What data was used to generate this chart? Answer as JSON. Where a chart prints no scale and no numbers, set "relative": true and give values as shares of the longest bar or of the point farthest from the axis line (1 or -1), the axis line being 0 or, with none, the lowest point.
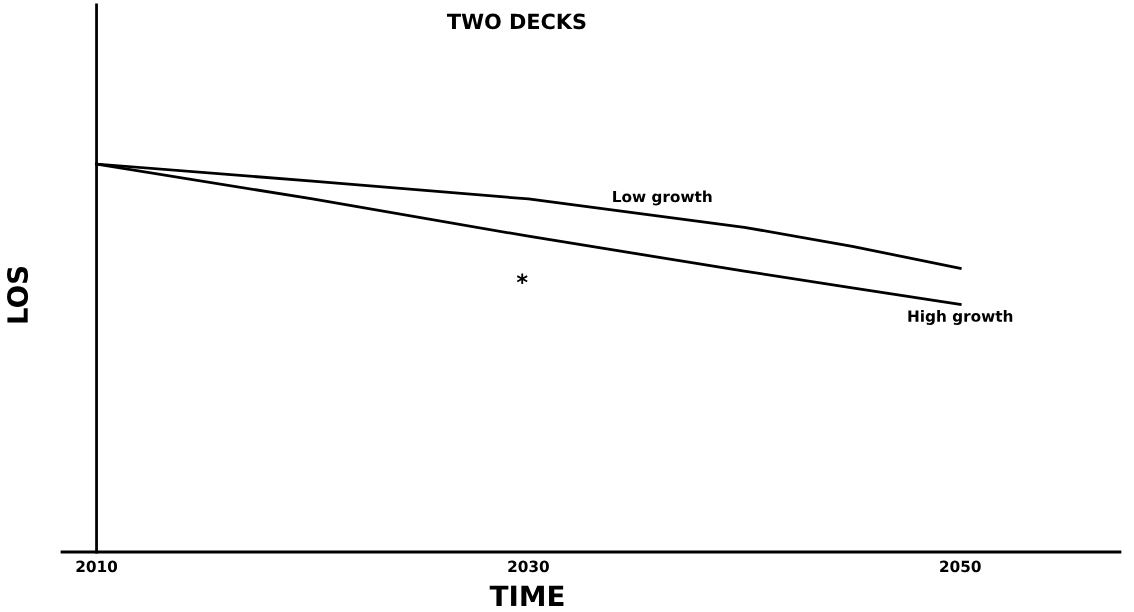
{
  "chart_data": {
    "type": "line",
    "title": "TWO DECKS",
    "xlabel": "TIME",
    "ylabel": "LOS",
    "relative": true,
    "x": [
      2010,
      2020,
      2030,
      2040,
      2045,
      2050
    ],
    "xlim": [
      2008.4,
      2057.4
    ],
    "xticks": [
      2010,
      2030,
      2050
    ],
    "series": [
      {
        "name": "Low growth",
        "color": "#000000",
        "values": [
          1.0,
          0.956,
          0.91,
          0.837,
          0.788,
          0.731
        ]
      },
      {
        "name": "High growth",
        "color": "#000000",
        "values": [
          1.0,
          0.91,
          0.814,
          0.724,
          0.681,
          0.638
        ]
      }
    ],
    "annotations": [
      "*"
    ],
    "legend": false,
    "marker": "none",
    "line_style": "solid"
  }
}
